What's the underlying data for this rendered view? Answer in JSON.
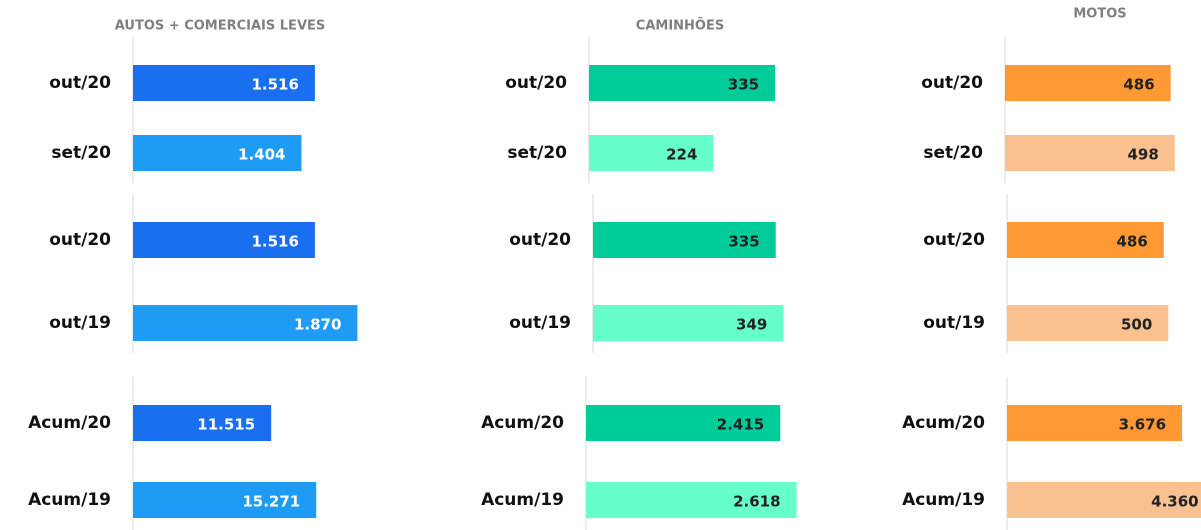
{
  "chart_data": [
    {
      "type": "bar",
      "orientation": "horizontal",
      "title": "AUTOS + COMERCIAIS LEVES",
      "categories": [
        "out/20",
        "set/20"
      ],
      "values": [
        1516,
        1404
      ],
      "value_labels": [
        "1.516",
        "1.404"
      ],
      "colors": [
        "#1a6ff0",
        "#1e9cf5"
      ],
      "xlim": [
        0,
        2500
      ]
    },
    {
      "type": "bar",
      "orientation": "horizontal",
      "categories": [
        "out/20",
        "out/19"
      ],
      "values": [
        1516,
        1870
      ],
      "value_labels": [
        "1.516",
        "1.870"
      ],
      "colors": [
        "#1a6ff0",
        "#1e9cf5"
      ],
      "xlim": [
        0,
        2500
      ]
    },
    {
      "type": "bar",
      "orientation": "horizontal",
      "categories": [
        "Acum/20",
        "Acum/19"
      ],
      "values": [
        11515,
        15271
      ],
      "value_labels": [
        "11.515",
        "15.271"
      ],
      "colors": [
        "#1a6ff0",
        "#1e9cf5"
      ],
      "xlim": [
        0,
        25000
      ]
    },
    {
      "type": "bar",
      "orientation": "horizontal",
      "title": "CAMINHÕES",
      "categories": [
        "out/20",
        "set/20"
      ],
      "values": [
        335,
        224
      ],
      "value_labels": [
        "335",
        "224"
      ],
      "colors": [
        "#00cc99",
        "#66ffcc"
      ],
      "xlim": [
        0,
        540
      ]
    },
    {
      "type": "bar",
      "orientation": "horizontal",
      "categories": [
        "out/20",
        "out/19"
      ],
      "values": [
        335,
        349
      ],
      "value_labels": [
        "335",
        "349"
      ],
      "colors": [
        "#00cc99",
        "#66ffcc"
      ],
      "xlim": [
        0,
        550
      ]
    },
    {
      "type": "bar",
      "orientation": "horizontal",
      "categories": [
        "Acum/20",
        "Acum/19"
      ],
      "values": [
        2415,
        2618
      ],
      "value_labels": [
        "2.415",
        "2.618"
      ],
      "colors": [
        "#00cc99",
        "#66ffcc"
      ],
      "xlim": [
        0,
        3730
      ]
    },
    {
      "type": "bar",
      "orientation": "horizontal",
      "title": "MOTOS",
      "categories": [
        "out/20",
        "set/20"
      ],
      "values": [
        486,
        498
      ],
      "value_labels": [
        "486",
        "498"
      ],
      "colors": [
        "#ff9933",
        "#f9c190"
      ],
      "xlim": [
        0,
        880
      ]
    },
    {
      "type": "bar",
      "orientation": "horizontal",
      "categories": [
        "out/20",
        "out/19"
      ],
      "values": [
        486,
        500
      ],
      "value_labels": [
        "486",
        "500"
      ],
      "colors": [
        "#ff9933",
        "#f9c190"
      ],
      "xlim": [
        0,
        930
      ]
    },
    {
      "type": "bar",
      "orientation": "horizontal",
      "categories": [
        "Acum/20",
        "Acum/19"
      ],
      "values": [
        3676,
        4360
      ],
      "value_labels": [
        "3.676",
        "4.360"
      ],
      "colors": [
        "#ff9933",
        "#f9c190"
      ],
      "xlim": [
        0,
        6300
      ]
    }
  ]
}
